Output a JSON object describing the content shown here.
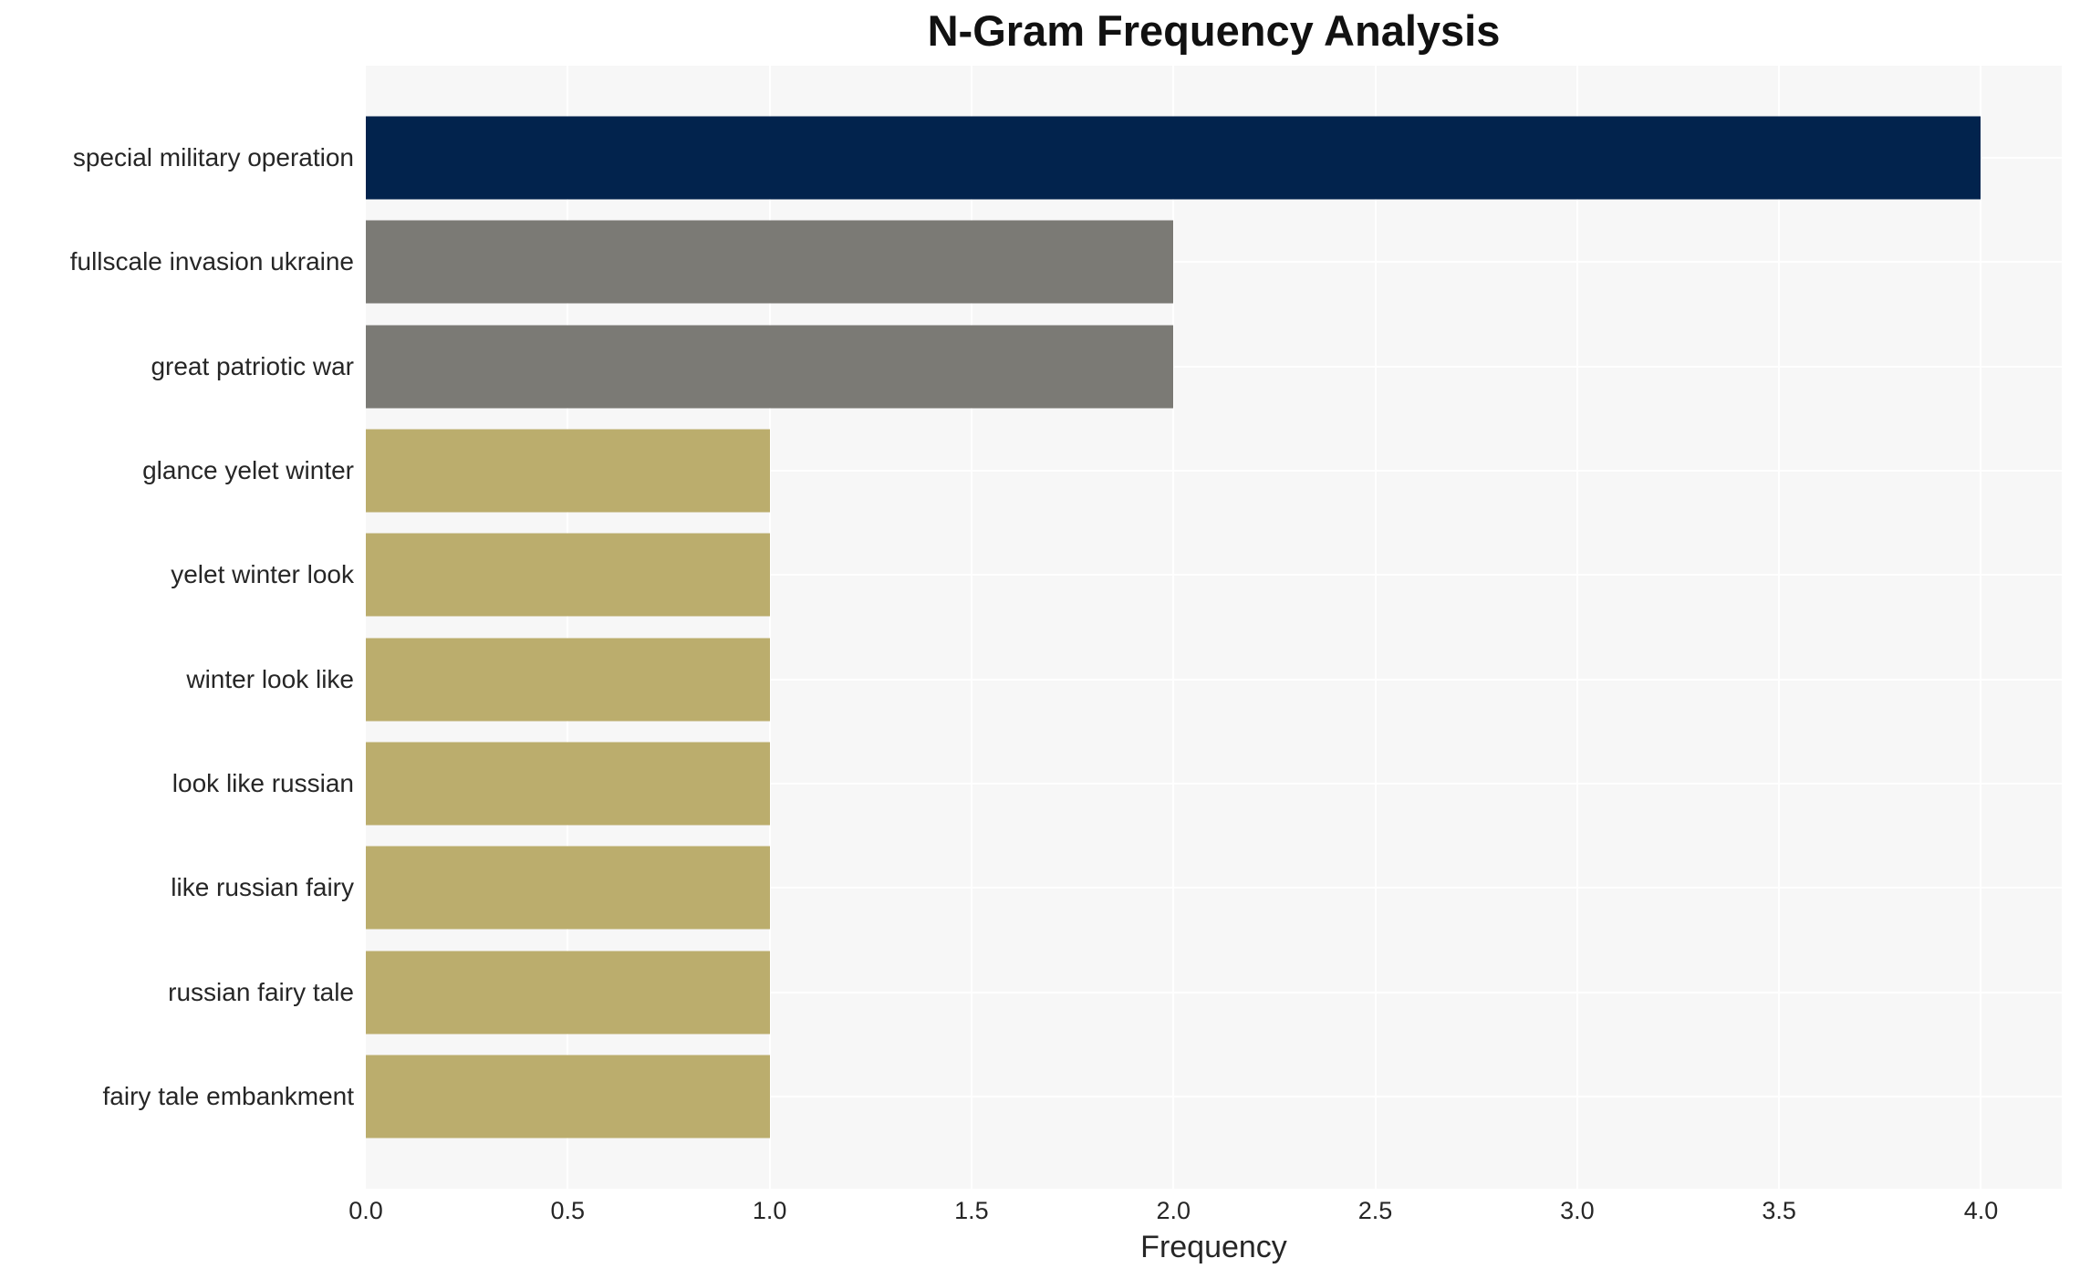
{
  "chart_data": {
    "type": "bar",
    "orientation": "horizontal",
    "title": "N-Gram Frequency Analysis",
    "xlabel": "Frequency",
    "ylabel": "",
    "categories": [
      "special military operation",
      "fullscale invasion ukraine",
      "great patriotic war",
      "glance yelet winter",
      "yelet winter look",
      "winter look like",
      "look like russian",
      "like russian fairy",
      "russian fairy tale",
      "fairy tale embankment"
    ],
    "values": [
      4,
      2,
      2,
      1,
      1,
      1,
      1,
      1,
      1,
      1
    ],
    "bar_colors": [
      "#02234d",
      "#7b7a75",
      "#7b7a75",
      "#bbad6d",
      "#bbad6d",
      "#bbad6d",
      "#bbad6d",
      "#bbad6d",
      "#bbad6d",
      "#bbad6d"
    ],
    "xlim": [
      0,
      4.2
    ],
    "xticks": [
      0.0,
      0.5,
      1.0,
      1.5,
      2.0,
      2.5,
      3.0,
      3.5,
      4.0
    ],
    "xtick_labels": [
      "0.0",
      "0.5",
      "1.0",
      "1.5",
      "2.0",
      "2.5",
      "3.0",
      "3.5",
      "4.0"
    ],
    "grid": true,
    "legend": false,
    "plot_background": "#f7f7f7",
    "grid_color": "#ffffff",
    "page_background": "#ffffff",
    "text_color": "#262626"
  }
}
